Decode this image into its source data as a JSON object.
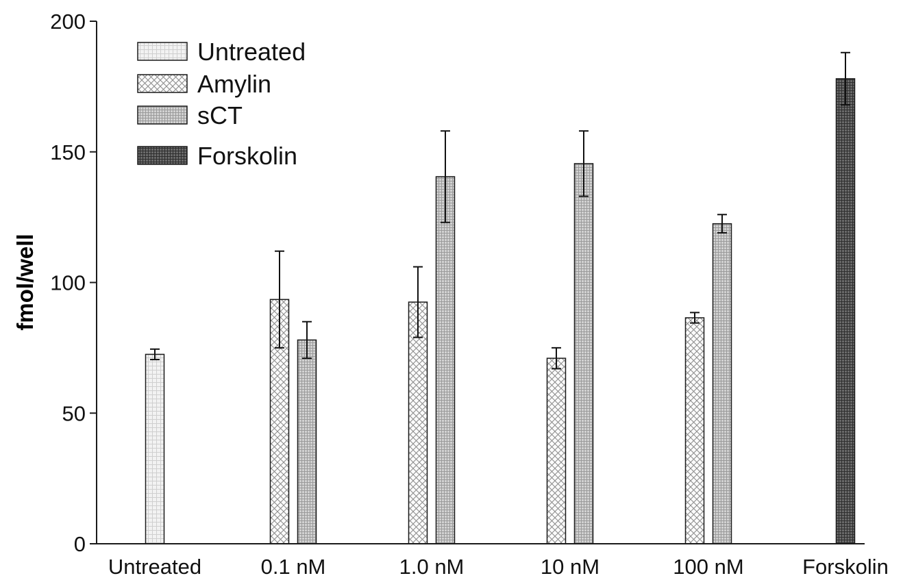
{
  "chart_data": {
    "type": "bar",
    "title": "",
    "xlabel": "",
    "ylabel": "fmol/well",
    "ylim": [
      0,
      200
    ],
    "yticks": [
      0,
      50,
      100,
      150,
      200
    ],
    "grid": false,
    "legend_position": "top-left",
    "categories": [
      "Untreated",
      "0.1 nM",
      "1.0 nM",
      "10 nM",
      "100 nM",
      "Forskolin"
    ],
    "series": [
      {
        "name": "Untreated",
        "pattern": "light-grid",
        "values": [
          72.5,
          null,
          null,
          null,
          null,
          null
        ],
        "errors": [
          2,
          null,
          null,
          null,
          null,
          null
        ]
      },
      {
        "name": "Amylin",
        "pattern": "crosshatch",
        "values": [
          null,
          93.5,
          92.5,
          71,
          86.5,
          null
        ],
        "errors": [
          null,
          18.5,
          13.5,
          4,
          2,
          null
        ]
      },
      {
        "name": "sCT",
        "pattern": "medium-grid",
        "values": [
          null,
          78,
          140.5,
          145.5,
          122.5,
          null
        ],
        "errors": [
          null,
          7,
          17.5,
          12.5,
          3.5,
          null
        ]
      },
      {
        "name": "Forskolin",
        "pattern": "dark-grid",
        "values": [
          null,
          null,
          null,
          null,
          null,
          178
        ],
        "errors": [
          null,
          null,
          null,
          null,
          null,
          10
        ]
      }
    ],
    "colors": {
      "axis": "#1a1a1a",
      "untreated_fill": "#e6e6e6",
      "amylin_fill": "#f4f4f4",
      "sct_fill": "#c2c2c2",
      "forskolin_fill": "#555555"
    }
  }
}
